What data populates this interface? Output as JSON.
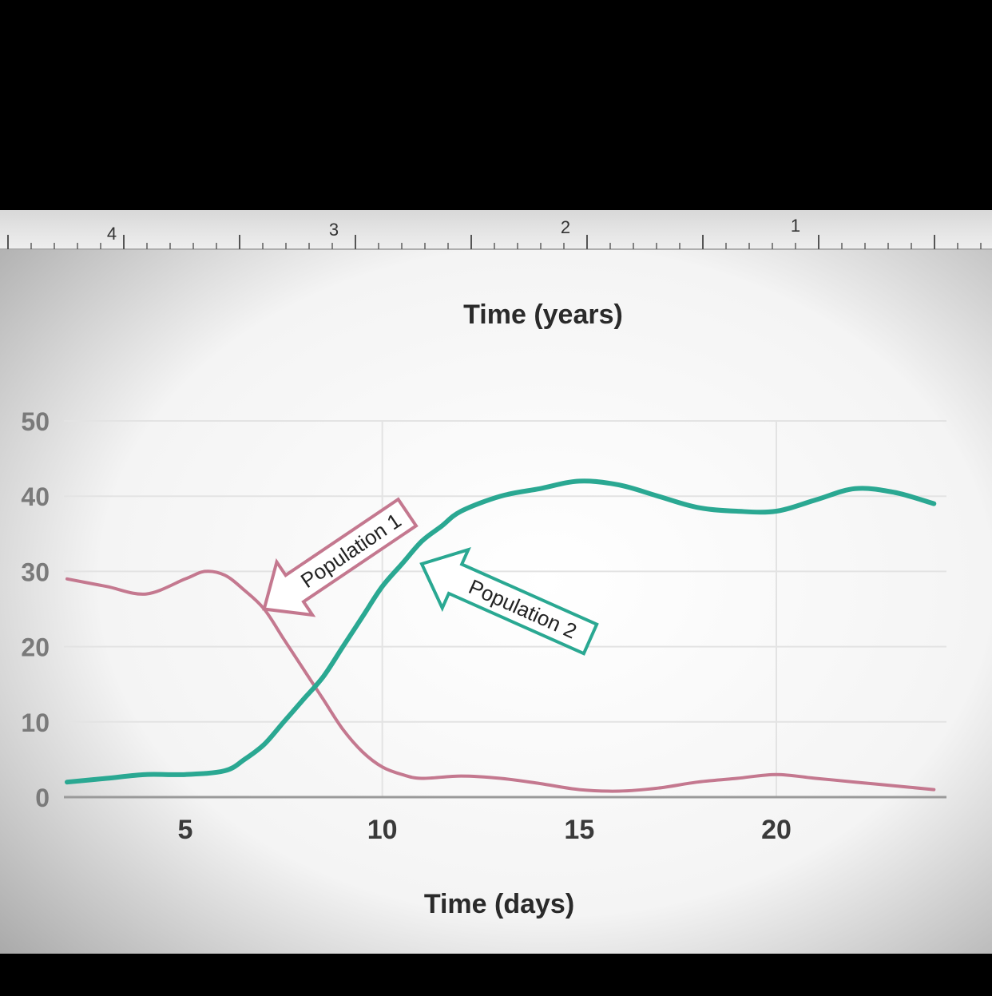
{
  "chart_data": {
    "type": "line",
    "xlabel": "Time (days)",
    "top_axis_label": "Time (years)",
    "ylabel": "",
    "xlim": [
      2,
      24
    ],
    "ylim": [
      0,
      50
    ],
    "x_ticks": [
      5,
      10,
      15,
      20
    ],
    "y_ticks": [
      0,
      10,
      20,
      30,
      40,
      50
    ],
    "top_ruler_ticks": [
      "4",
      "3",
      "2",
      "1"
    ],
    "grid": true,
    "colors": {
      "population_1": "#c4788f",
      "population_2": "#2aa892",
      "grid": "#e3e3e3",
      "text": "#2a2a2a"
    },
    "series": [
      {
        "name": "Population 1",
        "x": [
          2,
          3,
          4,
          5,
          5.5,
          6,
          6.5,
          7,
          7.5,
          8,
          8.5,
          9,
          9.5,
          10,
          10.5,
          11,
          12,
          13,
          14,
          15,
          16,
          17,
          18,
          19,
          20,
          21,
          22,
          23,
          24
        ],
        "values": [
          29,
          28,
          27,
          29,
          30,
          29.5,
          27.5,
          25,
          21,
          17,
          13,
          9,
          6,
          4,
          3,
          2.5,
          2.8,
          2.5,
          1.8,
          1,
          0.8,
          1.2,
          2,
          2.5,
          3,
          2.5,
          2,
          1.5,
          1
        ]
      },
      {
        "name": "Population 2",
        "x": [
          2,
          3,
          4,
          5,
          6,
          6.5,
          7,
          7.5,
          8,
          8.5,
          9,
          9.5,
          10,
          10.5,
          11,
          11.5,
          12,
          13,
          14,
          15,
          16,
          17,
          18,
          19,
          20,
          21,
          22,
          23,
          24
        ],
        "values": [
          2,
          2.5,
          3,
          3,
          3.5,
          5,
          7,
          10,
          13,
          16,
          20,
          24,
          28,
          31,
          34,
          36,
          38,
          40,
          41,
          42,
          41.5,
          40,
          38.5,
          38,
          38,
          39.5,
          41,
          40.5,
          39
        ]
      }
    ],
    "annotations": [
      {
        "text": "Population 1",
        "series": "Population 1",
        "x": 7,
        "y": 25
      },
      {
        "text": "Population 2",
        "series": "Population 2",
        "x": 11,
        "y": 31
      }
    ]
  }
}
